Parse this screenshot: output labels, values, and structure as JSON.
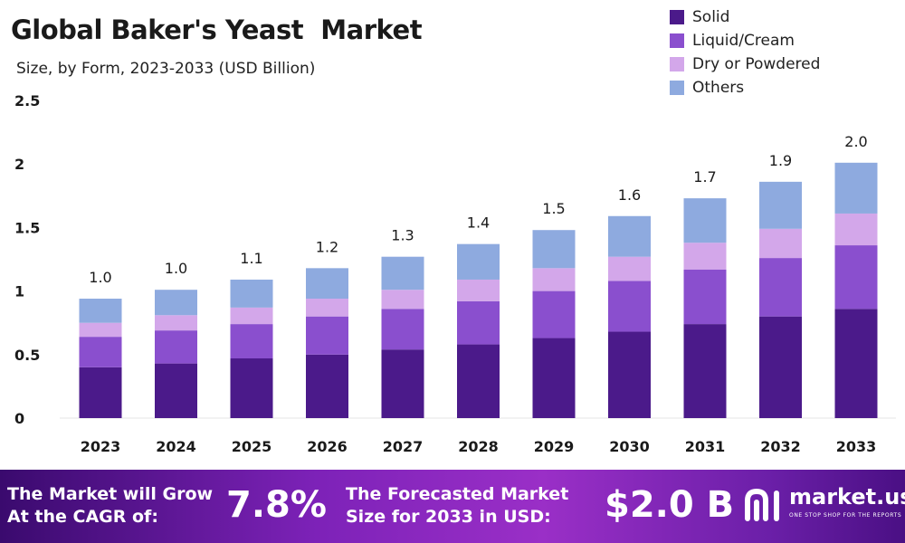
{
  "header": {
    "title": "Global Baker's Yeast  Market",
    "subtitle": "Size, by Form, 2023-2033 (USD Billion)"
  },
  "colors": {
    "solid": "#4b1a8a",
    "liquid": "#8a4fce",
    "dry": "#d3a7ea",
    "others": "#8eaadf"
  },
  "chart_data": {
    "type": "bar",
    "stacked": true,
    "categories": [
      "2023",
      "2024",
      "2025",
      "2026",
      "2027",
      "2028",
      "2029",
      "2030",
      "2031",
      "2032",
      "2033"
    ],
    "series": [
      {
        "name": "Solid",
        "values": [
          0.4,
          0.43,
          0.47,
          0.5,
          0.54,
          0.58,
          0.63,
          0.68,
          0.74,
          0.8,
          0.86
        ]
      },
      {
        "name": "Liquid/Cream",
        "values": [
          0.24,
          0.26,
          0.27,
          0.3,
          0.32,
          0.34,
          0.37,
          0.4,
          0.43,
          0.46,
          0.5
        ]
      },
      {
        "name": "Dry or Powdered",
        "values": [
          0.11,
          0.12,
          0.13,
          0.14,
          0.15,
          0.17,
          0.18,
          0.19,
          0.21,
          0.23,
          0.25
        ]
      },
      {
        "name": "Others",
        "values": [
          0.19,
          0.2,
          0.22,
          0.24,
          0.26,
          0.28,
          0.3,
          0.32,
          0.35,
          0.37,
          0.4
        ]
      }
    ],
    "totals_labels": [
      "1.0",
      "1.0",
      "1.1",
      "1.2",
      "1.3",
      "1.4",
      "1.5",
      "1.6",
      "1.7",
      "1.9",
      "2.0"
    ],
    "y_ticks": [
      "0",
      "0.5",
      "1",
      "1.5",
      "2",
      "2.5"
    ],
    "ylim": [
      0,
      2.5
    ],
    "grid": false,
    "legend_position": "top-right"
  },
  "footer": {
    "cagr_text": "The Market will Grow\nAt the CAGR of:",
    "cagr_value": "7.8%",
    "forecast_text": "The Forecasted Market\nSize for 2033 in USD:",
    "forecast_value": "$2.0 B",
    "brand_name": "market.us",
    "brand_tagline": "ONE STOP SHOP FOR THE REPORTS"
  }
}
